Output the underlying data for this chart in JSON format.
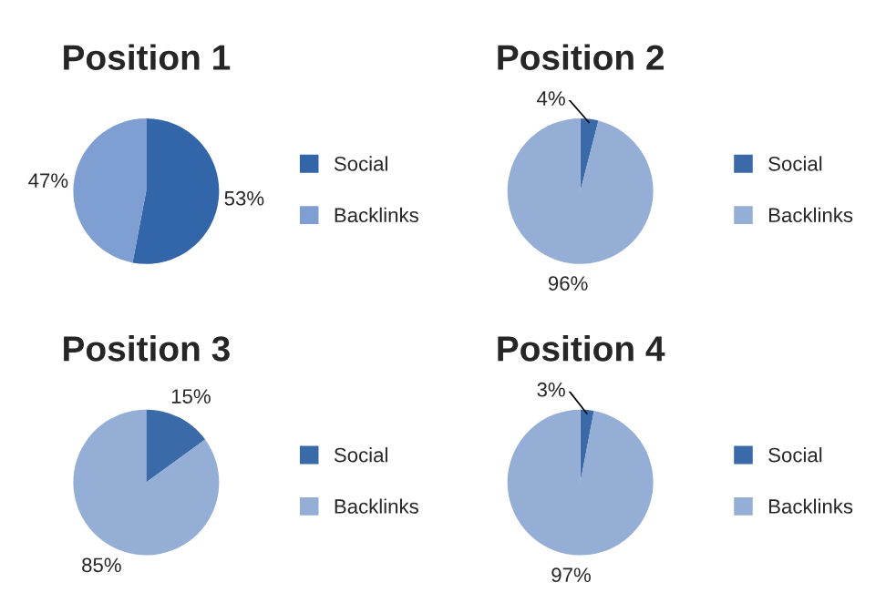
{
  "chart_data": [
    {
      "type": "pie",
      "title": "Position 1",
      "categories": [
        "Social",
        "Backlinks"
      ],
      "values": [
        53,
        47
      ],
      "value_labels": [
        "53%",
        "47%"
      ],
      "colors": [
        "#3366a8",
        "#7f9ed2"
      ],
      "legend": "right"
    },
    {
      "type": "pie",
      "title": "Position 2",
      "categories": [
        "Social",
        "Backlinks"
      ],
      "values": [
        4,
        96
      ],
      "value_labels": [
        "4%",
        "96%"
      ],
      "colors": [
        "#3a6aa8",
        "#95aed6"
      ],
      "legend": "right"
    },
    {
      "type": "pie",
      "title": "Position 3",
      "categories": [
        "Social",
        "Backlinks"
      ],
      "values": [
        15,
        85
      ],
      "value_labels": [
        "15%",
        "85%"
      ],
      "colors": [
        "#3a6aa8",
        "#95aed6"
      ],
      "legend": "right"
    },
    {
      "type": "pie",
      "title": "Position 4",
      "categories": [
        "Social",
        "Backlinks"
      ],
      "values": [
        3,
        97
      ],
      "value_labels": [
        "3%",
        "97%"
      ],
      "colors": [
        "#3a6aa8",
        "#95aed6"
      ],
      "legend": "right"
    }
  ]
}
